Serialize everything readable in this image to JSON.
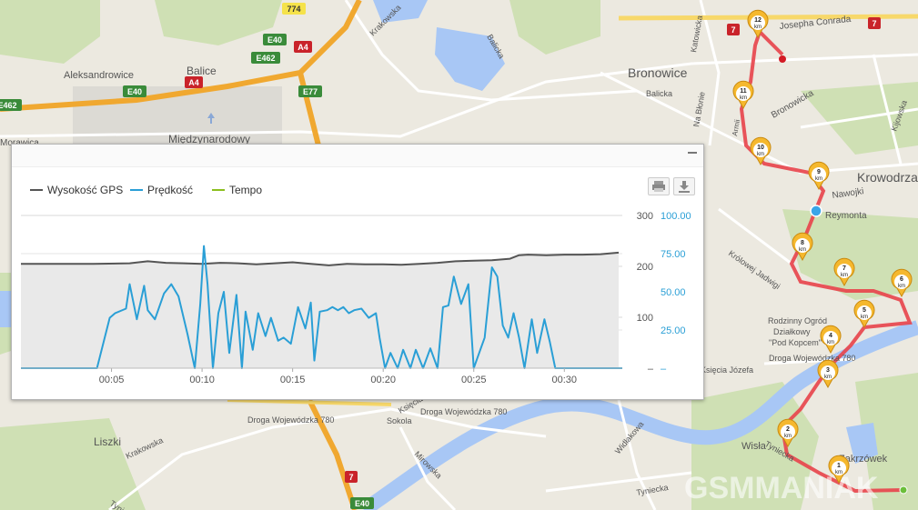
{
  "map": {
    "places": [
      {
        "id": "balice",
        "label": "Balice"
      },
      {
        "id": "aleksandrowice",
        "label": "Aleksandrowice"
      },
      {
        "id": "morawica",
        "label": "Morawica"
      },
      {
        "id": "miedzynarodowy",
        "label": "Międzynarodowy"
      },
      {
        "id": "bronowice",
        "label": "Bronowice"
      },
      {
        "id": "krowodrza",
        "label": "Krowodrza"
      },
      {
        "id": "liszki",
        "label": "Liszki"
      },
      {
        "id": "zakrzowek",
        "label": "Zakrzówek"
      },
      {
        "id": "sokola",
        "label": "Sokola"
      },
      {
        "id": "wisla",
        "label": "Wisła"
      },
      {
        "id": "rog",
        "label": "Rodzinny Ogród"
      },
      {
        "id": "rog2",
        "label": "Działkowy"
      },
      {
        "id": "rog3",
        "label": "\"Pod Kopcem\""
      }
    ],
    "streets": [
      {
        "id": "krakowska1",
        "label": "Krakowska"
      },
      {
        "id": "balicka1",
        "label": "Balicka"
      },
      {
        "id": "balicka2",
        "label": "Balicka"
      },
      {
        "id": "katowicka",
        "label": "Katowicka"
      },
      {
        "id": "josepha",
        "label": "Josepha Conrada"
      },
      {
        "id": "bronowicka",
        "label": "Bronowicka"
      },
      {
        "id": "nablonie",
        "label": "Na Błonie"
      },
      {
        "id": "nawojki",
        "label": "Nawojki"
      },
      {
        "id": "reymonta",
        "label": "Reymonta"
      },
      {
        "id": "krolowej",
        "label": "Królowej Jadwigi"
      },
      {
        "id": "kijowska",
        "label": "Kijowska"
      },
      {
        "id": "ksiecia1",
        "label": "Księcia Józefa"
      },
      {
        "id": "ksiecia2",
        "label": "Księcia Józefa"
      },
      {
        "id": "droga1",
        "label": "Droga Wojewódzka 780"
      },
      {
        "id": "droga2",
        "label": "Droga Wojewódzka 780"
      },
      {
        "id": "droga3",
        "label": "Droga Wojewódzka 780"
      },
      {
        "id": "krakowska2",
        "label": "Krakowska"
      },
      {
        "id": "tyniecka1",
        "label": "Tyniecka"
      },
      {
        "id": "tyniecka2",
        "label": "Tyniecka"
      },
      {
        "id": "tyniecka3",
        "label": "Tyniecka"
      },
      {
        "id": "mirowska",
        "label": "Mirowska"
      },
      {
        "id": "widlakowa",
        "label": "Widłakowa"
      },
      {
        "id": "armii",
        "label": "Armii"
      }
    ],
    "road_shields": [
      {
        "id": "s774",
        "label": "774"
      },
      {
        "id": "e40a",
        "label": "E40"
      },
      {
        "id": "a4a",
        "label": "A4"
      },
      {
        "id": "e462a",
        "label": "E462"
      },
      {
        "id": "e40b",
        "label": "E40"
      },
      {
        "id": "a4b",
        "label": "A4"
      },
      {
        "id": "e462b",
        "label": "E462"
      },
      {
        "id": "e77",
        "label": "E77"
      },
      {
        "id": "s7a",
        "label": "7"
      },
      {
        "id": "s7b",
        "label": "7"
      },
      {
        "id": "s7c",
        "label": "7"
      },
      {
        "id": "e40c",
        "label": "E40"
      }
    ],
    "km_markers": [
      "1",
      "2",
      "3",
      "4",
      "5",
      "6",
      "7",
      "8",
      "9",
      "10",
      "11",
      "12"
    ],
    "km_unit": "km",
    "watermark": "GSMMANIAK"
  },
  "panel": {
    "legend": [
      {
        "label": "Wysokość GPS",
        "color": "#555555"
      },
      {
        "label": "Prędkość",
        "color": "#2a9fd6"
      },
      {
        "label": "Tempo",
        "color": "#8bbf1e"
      }
    ]
  },
  "chart_data": {
    "type": "line",
    "x_unit": "minutes",
    "x_ticks": [
      "00:05",
      "00:10",
      "00:15",
      "00:20",
      "00:25",
      "00:30"
    ],
    "xlim": [
      0,
      33.2
    ],
    "y_left_ticks": [
      "300",
      "200",
      "100",
      "–"
    ],
    "y_right_ticks": [
      "100.00",
      "75.00",
      "50.00",
      "25.00",
      "–"
    ],
    "y_left_lim": [
      0,
      300
    ],
    "y_right_lim": [
      0,
      100
    ],
    "grid": true,
    "legend_position": "top-left",
    "series": [
      {
        "name": "Wysokość GPS",
        "axis": "left",
        "color": "#555555",
        "x": [
          0,
          2,
          4,
          6,
          7,
          8,
          9,
          10,
          11,
          12,
          13,
          14,
          15,
          16,
          17,
          18,
          19,
          20,
          21,
          22,
          23,
          24,
          25,
          26,
          27,
          27.5,
          28,
          29,
          30,
          31,
          32,
          33
        ],
        "values": [
          205,
          205,
          205,
          206,
          210,
          207,
          206,
          205,
          207,
          206,
          204,
          206,
          208,
          205,
          202,
          205,
          204,
          204,
          203,
          205,
          207,
          210,
          211,
          212,
          215,
          222,
          223,
          222,
          223,
          223,
          224,
          227
        ]
      },
      {
        "name": "Prędkość",
        "axis": "right",
        "color": "#2a9fd6",
        "x": [
          0,
          4.2,
          4.9,
          5.2,
          5.8,
          6.0,
          6.4,
          6.8,
          7.0,
          7.4,
          7.9,
          8.3,
          8.7,
          9.2,
          9.6,
          9.9,
          10.1,
          10.3,
          10.6,
          10.9,
          11.2,
          11.5,
          11.9,
          12.2,
          12.4,
          12.8,
          13.1,
          13.5,
          13.8,
          14.2,
          14.5,
          14.9,
          15.3,
          15.7,
          16.0,
          16.2,
          16.5,
          16.9,
          17.2,
          17.5,
          17.8,
          18.1,
          18.4,
          18.8,
          19.2,
          19.6,
          19.8,
          20.1,
          20.4,
          20.8,
          21.1,
          21.5,
          21.8,
          22.2,
          22.6,
          23.0,
          23.3,
          23.6,
          23.9,
          24.3,
          24.7,
          25.0,
          25.3,
          25.6,
          26.0,
          26.3,
          26.6,
          26.9,
          27.2,
          27.5,
          27.8,
          28.2,
          28.5,
          28.9,
          29.2,
          29.5,
          29.9,
          30.3,
          30.7,
          31.2,
          33.2
        ],
        "values": [
          0,
          0,
          33,
          36,
          39,
          55,
          32,
          54,
          38,
          32,
          49,
          55,
          47,
          22,
          0,
          42,
          80,
          55,
          0,
          36,
          50,
          10,
          48,
          0,
          37,
          12,
          36,
          21,
          33,
          18,
          20,
          16,
          40,
          26,
          43,
          5,
          37,
          38,
          40,
          38,
          40,
          36,
          38,
          39,
          33,
          36,
          20,
          0,
          10,
          0,
          12,
          0,
          12,
          0,
          13,
          0,
          40,
          41,
          60,
          42,
          55,
          0,
          10,
          20,
          66,
          60,
          28,
          20,
          36,
          20,
          0,
          32,
          10,
          32,
          17,
          0,
          0,
          0,
          0,
          0,
          0
        ]
      }
    ]
  }
}
